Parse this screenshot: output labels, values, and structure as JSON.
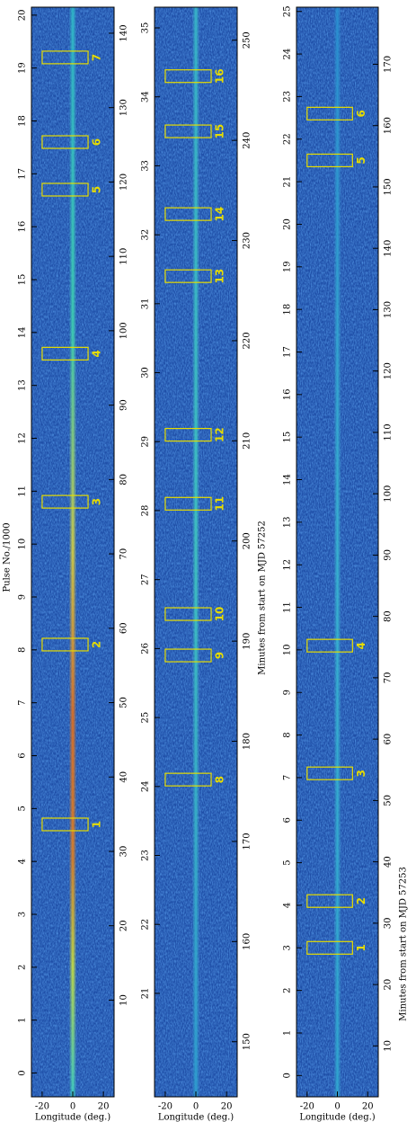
{
  "chart_data": [
    {
      "type": "pulse-stack",
      "xlabel": "Longitude (deg.)",
      "xlim": [
        -27,
        27
      ],
      "xticks": [
        -20,
        0,
        20
      ],
      "ylabel": "Pulse No./1000",
      "ylim": [
        -0.45,
        20.15
      ],
      "yticks": [
        0,
        1,
        2,
        3,
        4,
        5,
        6,
        7,
        8,
        9,
        10,
        11,
        12,
        13,
        14,
        15,
        16,
        17,
        18,
        19,
        20
      ],
      "y2lim": [
        -3,
        143.5
      ],
      "y2ticks": [
        10,
        20,
        30,
        40,
        50,
        60,
        70,
        80,
        90,
        100,
        110,
        120,
        130,
        140
      ],
      "box_color": "#e6dc00",
      "box_x": [
        -20,
        10
      ],
      "boxes": [
        {
          "label": "1",
          "y": 4.7
        },
        {
          "label": "2",
          "y": 8.1
        },
        {
          "label": "3",
          "y": 10.8
        },
        {
          "label": "4",
          "y": 13.6
        },
        {
          "label": "5",
          "y": 16.7
        },
        {
          "label": "6",
          "y": 17.6
        },
        {
          "label": "7",
          "y": 19.2
        }
      ]
    },
    {
      "type": "pulse-stack",
      "xlabel": "Longitude (deg.)",
      "xlim": [
        -27,
        27
      ],
      "xticks": [
        -20,
        0,
        20
      ],
      "ylim": [
        19.5,
        35.3
      ],
      "yticks": [
        21,
        22,
        23,
        24,
        25,
        26,
        27,
        28,
        29,
        30,
        31,
        32,
        33,
        34,
        35
      ],
      "y2label": "Minutes from start on MJD 57252",
      "y2lim": [
        144.5,
        253.3
      ],
      "y2ticks": [
        150,
        160,
        170,
        180,
        190,
        200,
        210,
        220,
        230,
        240,
        250
      ],
      "box_color": "#e6dc00",
      "box_x": [
        -20,
        10
      ],
      "boxes": [
        {
          "label": "8",
          "y": 24.1
        },
        {
          "label": "9",
          "y": 25.9
        },
        {
          "label": "10",
          "y": 26.5
        },
        {
          "label": "11",
          "y": 28.1
        },
        {
          "label": "12",
          "y": 29.1
        },
        {
          "label": "13",
          "y": 31.4
        },
        {
          "label": "14",
          "y": 32.3
        },
        {
          "label": "15",
          "y": 33.5
        },
        {
          "label": "16",
          "y": 34.3
        }
      ]
    },
    {
      "type": "pulse-stack",
      "xlabel": "Longitude (deg.)",
      "xlim": [
        -27,
        27
      ],
      "xticks": [
        -20,
        0,
        20
      ],
      "ylim": [
        -0.5,
        25.1
      ],
      "yticks": [
        0,
        1,
        2,
        3,
        4,
        5,
        6,
        7,
        8,
        9,
        10,
        11,
        12,
        13,
        14,
        15,
        16,
        17,
        18,
        19,
        20,
        21,
        22,
        23,
        24,
        25
      ],
      "y2label": "Minutes from start on MJD 57253",
      "y2lim": [
        1.7,
        179.3
      ],
      "y2ticks": [
        10,
        20,
        30,
        40,
        50,
        60,
        70,
        80,
        90,
        100,
        110,
        120,
        130,
        140,
        150,
        160,
        170
      ],
      "box_color": "#e6dc00",
      "box_x": [
        -20,
        10
      ],
      "boxes": [
        {
          "label": "1",
          "y": 3.0
        },
        {
          "label": "2",
          "y": 4.1
        },
        {
          "label": "3",
          "y": 7.1
        },
        {
          "label": "4",
          "y": 10.1
        },
        {
          "label": "5",
          "y": 21.5
        },
        {
          "label": "6",
          "y": 22.6
        }
      ]
    }
  ]
}
